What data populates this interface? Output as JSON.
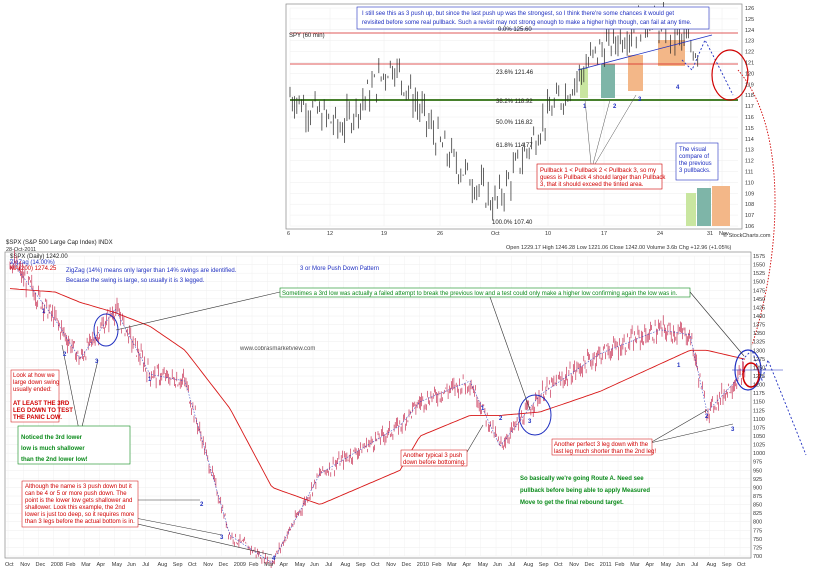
{
  "inset": {
    "header_lines": [
      "I still see this as 3 push up, but since the last push up was the strongest, so I think there're some chances it would get",
      "revisited before some real pullback. Such a revisit may not strong enough to make a higher high though, can fail at any time."
    ],
    "symbol_label": "SPY (60 min)",
    "fib_labels": [
      "0.0% 125.60",
      "23.6% 121.46",
      "38.2% 118.92",
      "50.0% 116.82",
      "61.8% 114.77",
      "100.0% 107.40"
    ],
    "push_numbers": [
      "1",
      "2",
      "3",
      "4"
    ],
    "note_lines": [
      "Pullback 1 < Pullback 2 < Pullback 3, so my",
      "guess is Pullback 4 should larger than Pullback",
      "3, that it should exceed the tinted area."
    ],
    "compare_lines": [
      "The visual",
      "compare of",
      "the previous",
      "3 pullbacks."
    ],
    "y_ticks": [
      "126",
      "125",
      "124",
      "123",
      "122",
      "121",
      "120",
      "119",
      "118",
      "117",
      "116",
      "115",
      "114",
      "113",
      "112",
      "111",
      "110",
      "109",
      "108",
      "107",
      "106"
    ],
    "x_ticks": [
      "6",
      "12",
      "19",
      "26",
      "Oct",
      "10",
      "17",
      "24",
      "31",
      "Nov"
    ],
    "footer": "Open 1229.17  High 1246.28  Low 1221.06  Close 1242.00  Volume 3.6b  Chg +12.96 (+1.05%)",
    "credit": "© StockCharts.com"
  },
  "main": {
    "symbol_title": "$SPX (S&P 500 Large Cap Index) INDX",
    "date_label": "28-Oct-2011",
    "legend_line1": "$SPX (Daily) 1242.00",
    "legend_line2": "ZigZag (14.00%)",
    "legend_line3": "MA(200) 1274.25",
    "zigzag_note": [
      "ZigZag (14%) means only larger than 14% swings are identified.",
      "Because the swing is large, so usually it is 3 legged."
    ],
    "pattern_title": "3 or More Push Down Pattern",
    "watermark": "www.cobrasmarketview.com",
    "green_banner": "Sometimes a 3rd low was actually a failed attempt to break the previous low and a test could only make a higher low confirming again the low was in.",
    "left_note_1": [
      "Look at how we",
      "large down swing",
      "usually ended:",
      "",
      "AT LEAST THE 3RD",
      "LEG DOWN TO TEST",
      "THE PANIC LOW."
    ],
    "big_green_note": [
      "Noticed the 3rd lower",
      "low is much shallower",
      "than the 2nd lower low!"
    ],
    "bottom_red_note": [
      "Although the name is 3 push down but it",
      "can be 4 or 5 or more push down. The",
      "point is the lower low gets shallower and",
      "shallower. Look this example, the 2nd",
      "lower is just too deep, so it requires more",
      "than 3 legs before the actual bottom is in."
    ],
    "mid_note": [
      "Another typical 3 push",
      "down before bottoming."
    ],
    "right_note": [
      "Another perfect 3 leg down with the",
      "last leg much shorter than the 2nd leg!"
    ],
    "route_note": [
      "So basically we're going Route A. Need see",
      "pullback before being able to apply Measured",
      "Move to get the final rebound target."
    ],
    "y_ticks": [
      "1575",
      "1550",
      "1525",
      "1500",
      "1475",
      "1450",
      "1425",
      "1400",
      "1375",
      "1350",
      "1325",
      "1300",
      "1275",
      "1250",
      "1225",
      "1200",
      "1175",
      "1150",
      "1125",
      "1100",
      "1075",
      "1050",
      "1025",
      "1000",
      "975",
      "950",
      "925",
      "900",
      "875",
      "850",
      "825",
      "800",
      "775",
      "750",
      "725",
      "700"
    ],
    "x_ticks": [
      "Oct",
      "Nov",
      "Dec",
      "2008",
      "Feb",
      "Mar",
      "Apr",
      "May",
      "Jun",
      "Jul",
      "Aug",
      "Sep",
      "Oct",
      "Nov",
      "Dec",
      "2009",
      "Feb",
      "Mar",
      "Apr",
      "May",
      "Jun",
      "Jul",
      "Aug",
      "Sep",
      "Oct",
      "Nov",
      "Dec",
      "2010",
      "Feb",
      "Mar",
      "Apr",
      "May",
      "Jun",
      "Jul",
      "Aug",
      "Sep",
      "Oct",
      "Nov",
      "Dec",
      "2011",
      "Feb",
      "Mar",
      "Apr",
      "May",
      "Jun",
      "Jul",
      "Aug",
      "Sep",
      "Oct"
    ],
    "leg_labels": [
      "1",
      "2",
      "3",
      "1",
      "2",
      "3",
      "4",
      "1",
      "2",
      "3",
      "1",
      "2",
      "3"
    ]
  },
  "colors": {
    "price": "#c0143c",
    "ma": "#d81818",
    "zigzag": "#3a4cc8",
    "annotation_blue": "#1f2fc0",
    "annotation_red": "#d00000",
    "annotation_green": "#0a8a1a"
  },
  "chart_data": [
    {
      "type": "line",
      "name": "SPY (60 min)",
      "x": [
        "6",
        "12",
        "19",
        "26",
        "Oct",
        "10",
        "17",
        "24",
        "31"
      ],
      "values": [
        118,
        115,
        121,
        113,
        108,
        116,
        122,
        125,
        122
      ],
      "ylim": [
        106,
        126
      ],
      "fib_levels": [
        125.6,
        121.46,
        118.92,
        116.82,
        114.77,
        107.4
      ]
    },
    {
      "type": "line",
      "name": "$SPX (Daily)",
      "x": [
        "2007-10",
        "2008-01",
        "2008-03",
        "2008-05",
        "2008-07",
        "2008-09",
        "2008-11",
        "2009-03",
        "2009-06",
        "2009-10",
        "2010-01",
        "2010-04",
        "2010-07",
        "2010-10",
        "2011-01",
        "2011-04",
        "2011-07",
        "2011-08",
        "2011-10"
      ],
      "values": [
        1565,
        1390,
        1275,
        1420,
        1230,
        1210,
        760,
        680,
        940,
        1080,
        1150,
        1210,
        1020,
        1170,
        1290,
        1360,
        1345,
        1120,
        1240
      ],
      "ma200_values": [
        1480,
        1470,
        1440,
        1410,
        1370,
        1300,
        1130,
        900,
        850,
        950,
        1050,
        1110,
        1110,
        1120,
        1180,
        1260,
        1300,
        1300,
        1274
      ],
      "ylim": [
        700,
        1575
      ]
    }
  ]
}
